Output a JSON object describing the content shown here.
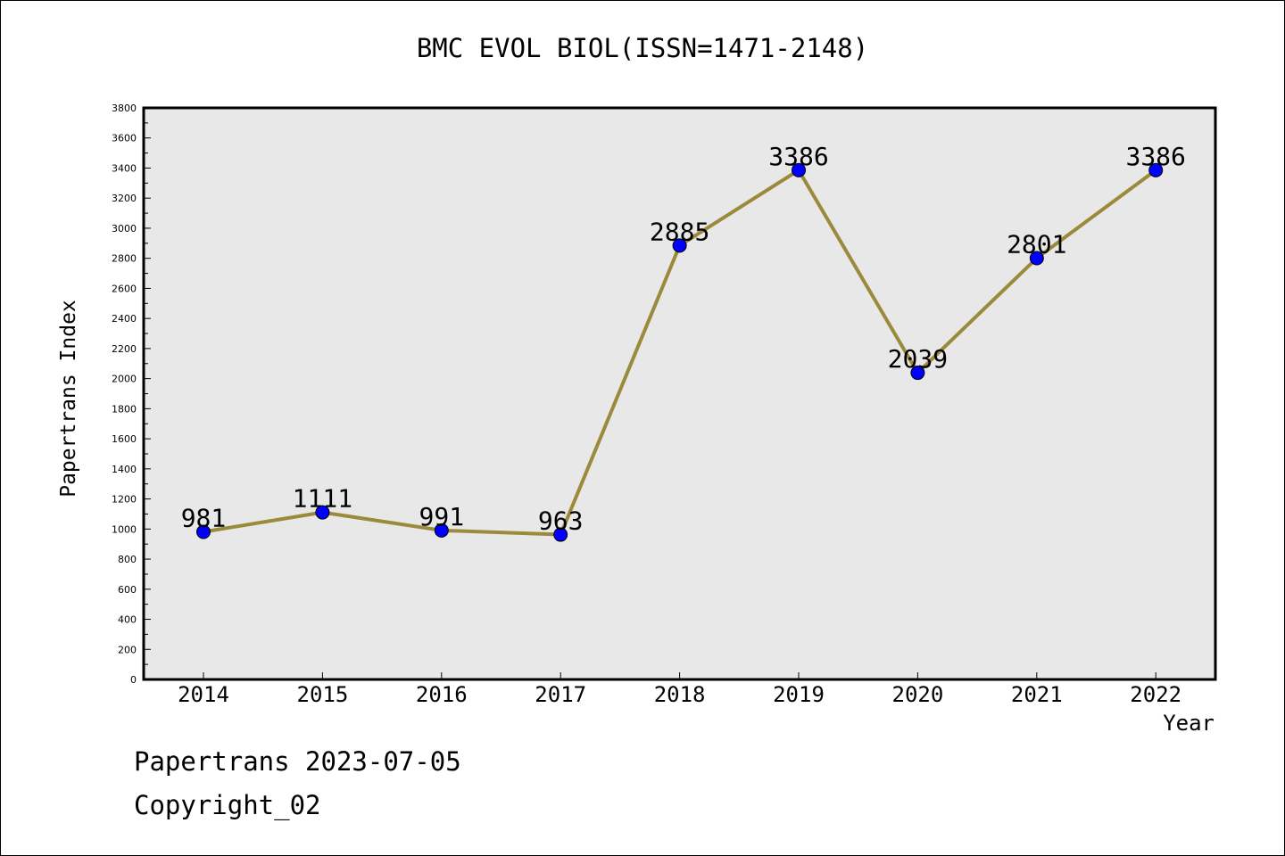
{
  "chart_data": {
    "type": "line",
    "title": "BMC EVOL BIOL(ISSN=1471-2148)",
    "xlabel": "Year",
    "ylabel": "Papertrans Index",
    "categories": [
      "2014",
      "2015",
      "2016",
      "2017",
      "2018",
      "2019",
      "2020",
      "2021",
      "2022"
    ],
    "values": [
      981,
      1111,
      991,
      963,
      2885,
      3386,
      2039,
      2801,
      3386
    ],
    "ylim": [
      0,
      3800
    ],
    "yticks": [
      0,
      200,
      400,
      600,
      800,
      1000,
      1200,
      1400,
      1600,
      1800,
      2000,
      2200,
      2400,
      2600,
      2800,
      3000,
      3200,
      3400,
      3600,
      3800
    ],
    "grid": false,
    "data_labels": true,
    "colors": {
      "line": "#9b8a3b",
      "marker": "#0000ff",
      "plot_background": "#e8e8e8"
    }
  },
  "footer": {
    "line1": "Papertrans 2023-07-05",
    "line2": "Copyright_02"
  }
}
